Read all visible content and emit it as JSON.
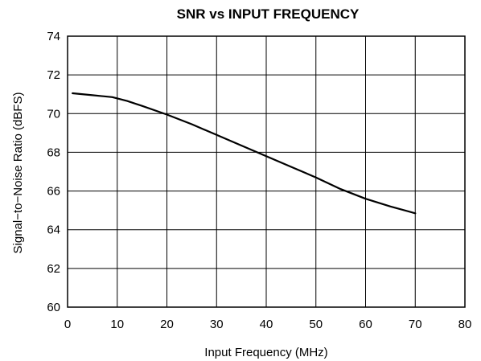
{
  "chart_data": {
    "type": "line",
    "title": "SNR vs INPUT FREQUENCY",
    "xlabel": "Input Frequency (MHz)",
    "ylabel": "Signal−to−Noise Ratio (dBFS)",
    "xlim": [
      0,
      80
    ],
    "ylim": [
      60,
      74
    ],
    "xticks": [
      0,
      10,
      20,
      30,
      40,
      50,
      60,
      70,
      80
    ],
    "yticks": [
      60,
      62,
      64,
      66,
      68,
      70,
      72,
      74
    ],
    "grid": true,
    "series": [
      {
        "color": "#000000",
        "x": [
          1,
          5,
          9,
          12,
          15,
          20,
          25,
          30,
          35,
          40,
          45,
          50,
          55,
          60,
          65,
          70
        ],
        "y": [
          71.05,
          70.95,
          70.85,
          70.65,
          70.4,
          69.95,
          69.45,
          68.9,
          68.35,
          67.8,
          67.25,
          66.7,
          66.1,
          65.6,
          65.2,
          64.85
        ]
      }
    ]
  }
}
